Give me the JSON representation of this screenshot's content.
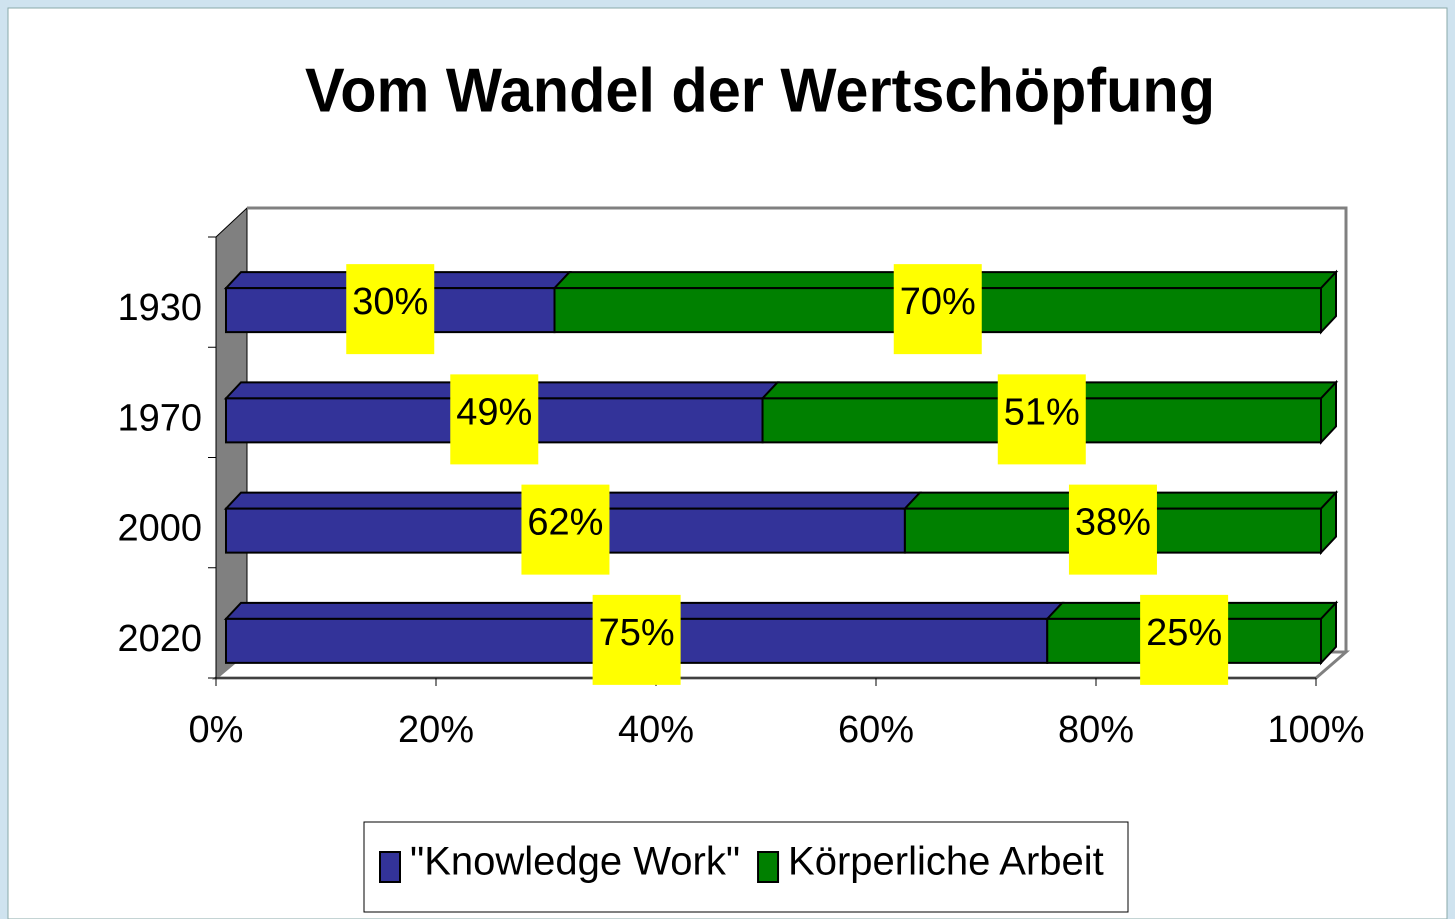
{
  "chart_data": {
    "type": "bar",
    "orientation": "horizontal",
    "stacked": true,
    "title": "Vom Wandel der Wertschöpfung",
    "categories": [
      "1930",
      "1970",
      "2000",
      "2020"
    ],
    "series": [
      {
        "name": "\"Knowledge Work\"",
        "color": "#333399",
        "values": [
          30,
          49,
          62,
          75
        ],
        "value_labels": [
          "30%",
          "49%",
          "62%",
          "75%"
        ]
      },
      {
        "name": "Körperliche Arbeit",
        "color": "#008000",
        "values": [
          70,
          51,
          38,
          25
        ],
        "value_labels": [
          "70%",
          "51%",
          "38%",
          "25%"
        ]
      }
    ],
    "xlim": [
      0,
      100
    ],
    "xticks": [
      {
        "value": 0,
        "label": "0%"
      },
      {
        "value": 20,
        "label": "20%"
      },
      {
        "value": 40,
        "label": "40%"
      },
      {
        "value": 60,
        "label": "60%"
      },
      {
        "value": 80,
        "label": "80%"
      },
      {
        "value": 100,
        "label": "100%"
      }
    ],
    "label_background": "#ffff00",
    "legend": "bottom"
  }
}
